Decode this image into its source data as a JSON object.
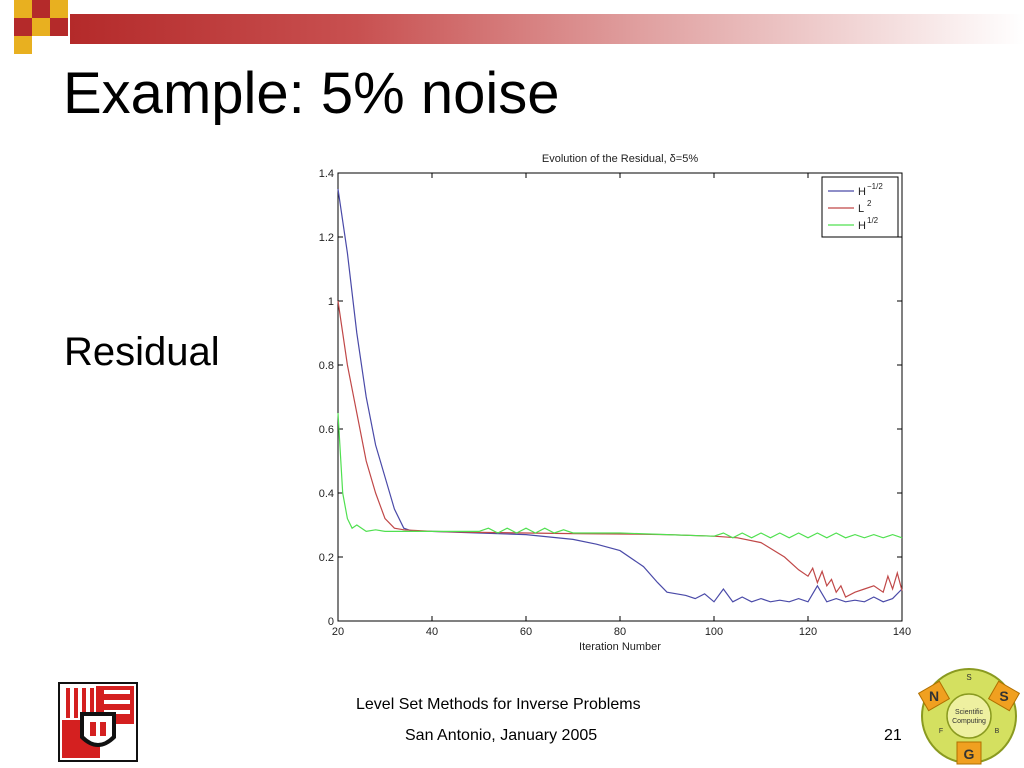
{
  "slide": {
    "title": "Example: 5% noise",
    "side_label": "Residual",
    "footer_line1": "Level Set Methods for Inverse Problems",
    "footer_line2": "San Antonio, January 2005",
    "page_number": "21"
  },
  "logos": {
    "left": "university-crest",
    "right": {
      "top": "S",
      "left_tab": "N",
      "right_tab": "S",
      "bottom_tab": "G",
      "left_small": "F",
      "right_small": "B",
      "center_line1": "Scientific",
      "center_line2": "Computing"
    }
  },
  "colors": {
    "accent": "#b42a2a",
    "deco_yellow": "#e8b020",
    "deco_red": "#b42a2a",
    "series_blue": "#4a4aa8",
    "series_red": "#c04848",
    "series_green": "#50e050"
  },
  "chart_data": {
    "type": "line",
    "title": "Evolution of the Residual, δ=5%",
    "xlabel": "Iteration Number",
    "ylabel": "",
    "xlim": [
      20,
      140
    ],
    "ylim": [
      0,
      1.4
    ],
    "xticks": [
      "20",
      "40",
      "60",
      "80",
      "100",
      "120",
      "140"
    ],
    "yticks": [
      "0",
      "0.2",
      "0.4",
      "0.6",
      "0.8",
      "1",
      "1.2",
      "1.4"
    ],
    "grid": false,
    "legend_position": "top-right",
    "series": [
      {
        "name": "H^{-1/2}",
        "legend_base": "H",
        "legend_sup": "−1/2",
        "color": "#4a4aa8",
        "x": [
          20,
          22,
          24,
          26,
          28,
          30,
          32,
          34,
          36,
          40,
          50,
          60,
          70,
          75,
          80,
          85,
          88,
          90,
          92,
          94,
          96,
          98,
          100,
          102,
          104,
          106,
          108,
          110,
          112,
          114,
          116,
          118,
          120,
          122,
          124,
          126,
          128,
          130,
          132,
          134,
          136,
          138,
          140
        ],
        "y": [
          1.35,
          1.15,
          0.9,
          0.7,
          0.55,
          0.45,
          0.35,
          0.29,
          0.28,
          0.28,
          0.275,
          0.27,
          0.255,
          0.24,
          0.22,
          0.17,
          0.12,
          0.09,
          0.085,
          0.08,
          0.07,
          0.085,
          0.06,
          0.1,
          0.06,
          0.075,
          0.06,
          0.07,
          0.06,
          0.065,
          0.06,
          0.07,
          0.06,
          0.11,
          0.06,
          0.07,
          0.06,
          0.065,
          0.06,
          0.075,
          0.06,
          0.07,
          0.1
        ]
      },
      {
        "name": "L^2",
        "legend_base": "L",
        "legend_sup": "2",
        "color": "#c04848",
        "x": [
          20,
          22,
          24,
          26,
          28,
          30,
          32,
          34,
          40,
          50,
          60,
          70,
          80,
          90,
          100,
          105,
          110,
          115,
          118,
          120,
          121,
          122,
          123,
          124,
          125,
          126,
          127,
          128,
          130,
          132,
          134,
          136,
          137,
          138,
          139,
          140
        ],
        "y": [
          1.0,
          0.8,
          0.65,
          0.5,
          0.4,
          0.32,
          0.29,
          0.285,
          0.28,
          0.277,
          0.275,
          0.273,
          0.272,
          0.27,
          0.265,
          0.26,
          0.245,
          0.2,
          0.16,
          0.14,
          0.165,
          0.12,
          0.155,
          0.11,
          0.13,
          0.09,
          0.11,
          0.075,
          0.09,
          0.1,
          0.11,
          0.09,
          0.14,
          0.1,
          0.15,
          0.095
        ]
      },
      {
        "name": "H^{1/2}",
        "legend_base": "H",
        "legend_sup": "1/2",
        "color": "#50e050",
        "x": [
          20,
          21,
          22,
          23,
          24,
          26,
          28,
          30,
          35,
          40,
          45,
          50,
          52,
          54,
          56,
          58,
          60,
          62,
          64,
          66,
          68,
          70,
          80,
          90,
          100,
          102,
          104,
          106,
          108,
          110,
          112,
          114,
          116,
          118,
          120,
          122,
          124,
          126,
          128,
          130,
          132,
          134,
          136,
          138,
          140
        ],
        "y": [
          0.65,
          0.4,
          0.32,
          0.29,
          0.3,
          0.28,
          0.285,
          0.28,
          0.28,
          0.28,
          0.28,
          0.28,
          0.29,
          0.275,
          0.29,
          0.275,
          0.29,
          0.275,
          0.29,
          0.275,
          0.285,
          0.275,
          0.275,
          0.27,
          0.265,
          0.275,
          0.26,
          0.275,
          0.26,
          0.275,
          0.26,
          0.275,
          0.26,
          0.275,
          0.26,
          0.275,
          0.26,
          0.275,
          0.26,
          0.27,
          0.26,
          0.27,
          0.26,
          0.27,
          0.26
        ]
      }
    ]
  }
}
